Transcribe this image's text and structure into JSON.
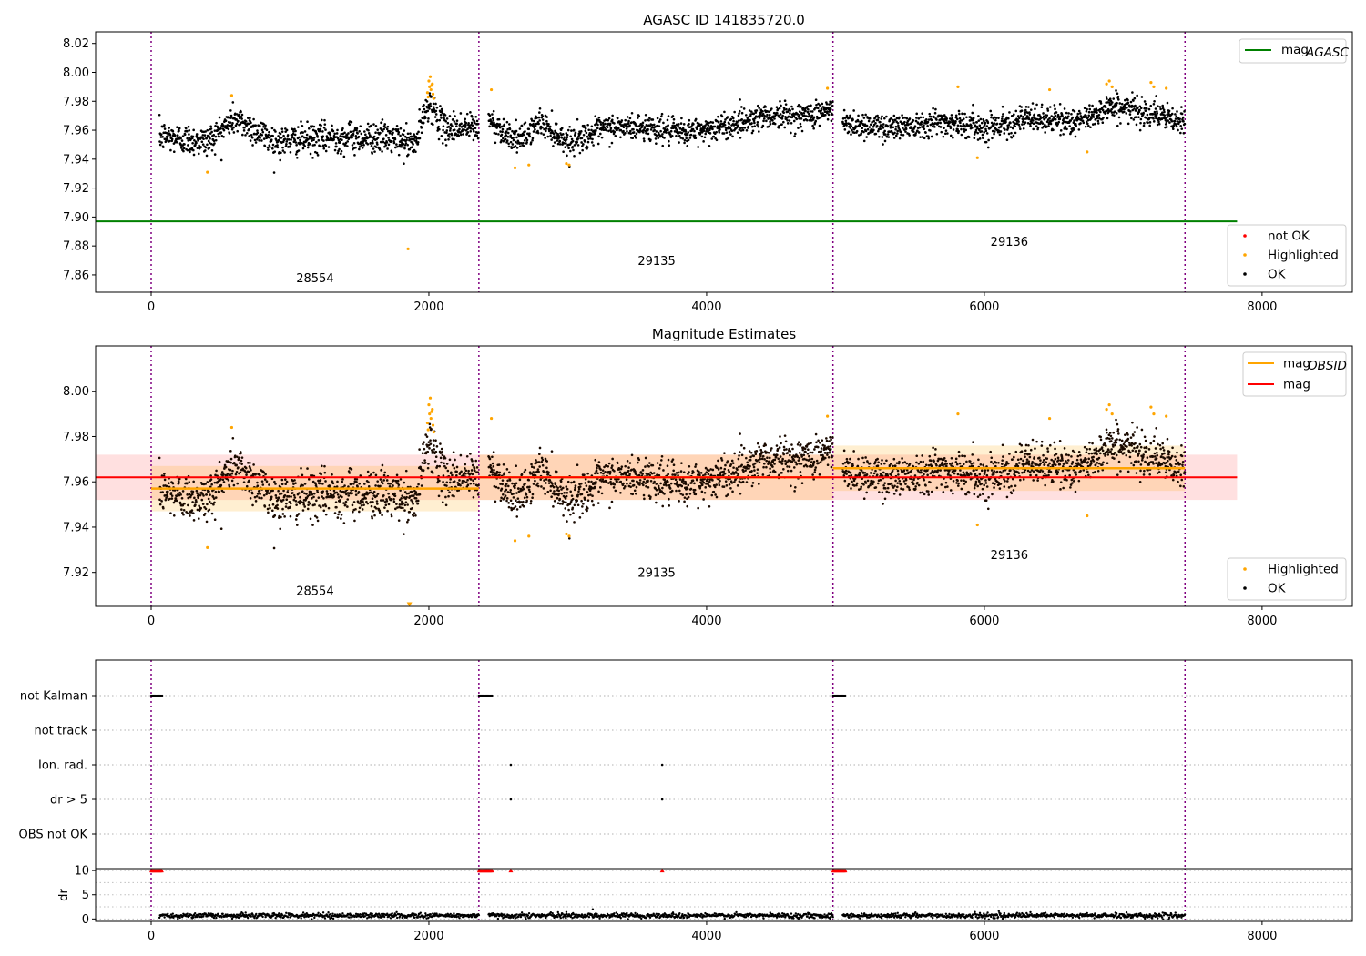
{
  "chart_data": [
    {
      "type": "scatter",
      "title": "AGASC ID 141835720.0",
      "xlim": [
        -400,
        8650
      ],
      "ylim": [
        7.848,
        8.028
      ],
      "xticks": [
        0,
        2000,
        4000,
        6000,
        8000
      ],
      "yticks": [
        7.86,
        7.88,
        7.9,
        7.92,
        7.94,
        7.96,
        7.98,
        8.0,
        8.02
      ],
      "ytick_labels": [
        "7.86",
        "7.88",
        "7.90",
        "7.92",
        "7.94",
        "7.96",
        "7.98",
        "8.00",
        "8.02"
      ],
      "obs_boundaries": [
        0,
        2360,
        4910,
        7445
      ],
      "obs_labels": [
        {
          "text": "28554",
          "x": 1180,
          "y": 7.855
        },
        {
          "text": "29135",
          "x": 3640,
          "y": 7.867
        },
        {
          "text": "29136",
          "x": 6180,
          "y": 7.88
        }
      ],
      "mag_agasc": 7.897,
      "mag_agasc_xrange": [
        -400,
        7820
      ],
      "legend_top": {
        "label": "mag",
        "subscript": "AGASC",
        "color": "#008000"
      },
      "legend_bottom": [
        {
          "label": "not OK",
          "color": "#ff0000"
        },
        {
          "label": "Highlighted",
          "color": "#ffa500"
        },
        {
          "label": "OK",
          "color": "#000000"
        }
      ],
      "ok_segments": [
        {
          "x": [
            60,
            2360
          ],
          "levels": [
            [
              60,
              7.956
            ],
            [
              400,
              7.952
            ],
            [
              600,
              7.968
            ],
            [
              900,
              7.952
            ],
            [
              1300,
              7.955
            ],
            [
              1700,
              7.955
            ],
            [
              1900,
              7.95
            ],
            [
              2000,
              7.98
            ],
            [
              2100,
              7.962
            ],
            [
              2360,
              7.962
            ]
          ],
          "noise": 0.007
        },
        {
          "x": [
            2430,
            4910
          ],
          "levels": [
            [
              2430,
              7.967
            ],
            [
              2650,
              7.952
            ],
            [
              2800,
              7.966
            ],
            [
              3000,
              7.952
            ],
            [
              3300,
              7.962
            ],
            [
              3600,
              7.962
            ],
            [
              3800,
              7.958
            ],
            [
              4100,
              7.962
            ],
            [
              4400,
              7.97
            ],
            [
              4700,
              7.97
            ],
            [
              4910,
              7.974
            ]
          ],
          "noise": 0.006
        },
        {
          "x": [
            4980,
            7445
          ],
          "levels": [
            [
              4980,
              7.965
            ],
            [
              5300,
              7.962
            ],
            [
              5700,
              7.966
            ],
            [
              6000,
              7.962
            ],
            [
              6300,
              7.968
            ],
            [
              6700,
              7.966
            ],
            [
              6900,
              7.977
            ],
            [
              7200,
              7.972
            ],
            [
              7445,
              7.964
            ]
          ],
          "noise": 0.006
        }
      ],
      "highlighted_points": [
        [
          405,
          7.931
        ],
        [
          580,
          7.984
        ],
        [
          1850,
          7.878
        ],
        [
          2010,
          7.997
        ],
        [
          2000,
          7.994
        ],
        [
          2020,
          7.991
        ],
        [
          2005,
          7.99
        ],
        [
          2015,
          7.988
        ],
        [
          1990,
          7.986
        ],
        [
          2030,
          7.985
        ],
        [
          2025,
          7.992
        ],
        [
          1995,
          7.983
        ],
        [
          2035,
          7.982
        ],
        [
          2450,
          7.988
        ],
        [
          2620,
          7.934
        ],
        [
          2720,
          7.936
        ],
        [
          2990,
          7.937
        ],
        [
          3010,
          7.936
        ],
        [
          4870,
          7.989
        ],
        [
          5810,
          7.99
        ],
        [
          5950,
          7.941
        ],
        [
          6470,
          7.988
        ],
        [
          6740,
          7.945
        ],
        [
          6880,
          7.992
        ],
        [
          6900,
          7.994
        ],
        [
          6920,
          7.99
        ],
        [
          7200,
          7.993
        ],
        [
          7220,
          7.99
        ],
        [
          7310,
          7.989
        ]
      ]
    },
    {
      "type": "scatter",
      "title": "Magnitude Estimates",
      "xlim": [
        -400,
        8650
      ],
      "ylim": [
        7.905,
        8.02
      ],
      "xticks": [
        0,
        2000,
        4000,
        6000,
        8000
      ],
      "yticks": [
        7.92,
        7.94,
        7.96,
        7.98,
        8.0
      ],
      "ytick_labels": [
        "7.92",
        "7.94",
        "7.96",
        "7.98",
        "8.00"
      ],
      "obs_boundaries": [
        0,
        2360,
        4910,
        7445
      ],
      "obs_labels": [
        {
          "text": "28554",
          "x": 1180,
          "y": 7.91
        },
        {
          "text": "29135",
          "x": 3640,
          "y": 7.918
        },
        {
          "text": "29136",
          "x": 6180,
          "y": 7.926
        }
      ],
      "mag": 7.962,
      "mag_band": [
        7.952,
        7.972
      ],
      "mag_xrange": [
        -400,
        7820
      ],
      "mag_obsid": [
        {
          "x": [
            0,
            2360
          ],
          "value": 7.957,
          "band": [
            7.947,
            7.967
          ]
        },
        {
          "x": [
            2360,
            4910
          ],
          "value": 7.962,
          "band": [
            7.952,
            7.972
          ]
        },
        {
          "x": [
            4910,
            7445
          ],
          "value": 7.966,
          "band": [
            7.956,
            7.976
          ]
        }
      ],
      "legend_top": [
        {
          "label": "mag",
          "subscript": "OBSID",
          "color": "#ffa500"
        },
        {
          "label": "mag",
          "subscript": "",
          "color": "#ff0000"
        }
      ],
      "legend_bottom": [
        {
          "label": "Highlighted",
          "color": "#ffa500"
        },
        {
          "label": "OK",
          "color": "#000000"
        }
      ],
      "highlighted_low": [
        1860,
        7.906
      ]
    },
    {
      "type": "scatter",
      "xlim": [
        -400,
        8650
      ],
      "xticks": [
        0,
        2000,
        4000,
        6000,
        8000
      ],
      "categories": [
        "not Kalman",
        "not track",
        "Ion. rad.",
        "dr > 5",
        "OBS not OK"
      ],
      "obs_boundaries": [
        0,
        2360,
        4910,
        7445
      ],
      "flag_points": {
        "not Kalman": [
          [
            0,
            80
          ],
          [
            2360,
            2460
          ],
          [
            4910,
            5000
          ]
        ],
        "Ion. rad.": [
          [
            2590
          ],
          [
            3680
          ]
        ],
        "dr > 5": [
          [
            2590
          ],
          [
            3680
          ]
        ]
      },
      "dr": {
        "ylabel": "dr",
        "ylim": [
          -0.5,
          10.4
        ],
        "yticks": [
          0,
          5,
          10
        ],
        "ytick_labels": [
          "0",
          "5",
          "10"
        ],
        "clipped_value": 10,
        "clipped_ranges": [
          [
            0,
            80
          ],
          [
            2360,
            2460
          ],
          [
            4910,
            5000
          ]
        ],
        "clipped_singles": [
          2590,
          3680
        ],
        "baseline": 0.7,
        "outlier": [
          3180,
          2.0
        ]
      }
    }
  ]
}
